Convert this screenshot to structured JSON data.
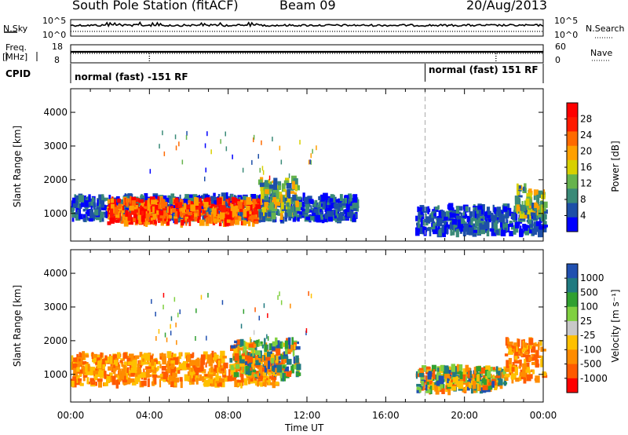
{
  "header": {
    "title": "South Pole Station (fitACF)",
    "beam": "Beam 09",
    "date": "20/Aug/2013"
  },
  "strip": {
    "nsky_label": "N.Sky",
    "nsky_top": "10^5",
    "nsky_bottom": "10^0",
    "nsearch_label": "N.Search",
    "nsearch_top": "10^5",
    "nsearch_bottom": "10^0",
    "freq_label": "Freq.",
    "freq_unit": "[MHz]",
    "freq_top": "18",
    "freq_bottom": "8",
    "nave_label": "Nave",
    "nave_top": "60",
    "nave_bottom": "0",
    "cpid_label": "CPID",
    "cpid_mode_1": "normal (fast) -151 RF",
    "cpid_mode_2": "normal (fast) 151 RF"
  },
  "colors": {
    "power_scale": [
      "#0000ff",
      "#1d4fa8",
      "#3a8a78",
      "#66b34d",
      "#d8d000",
      "#ffa000",
      "#ff6a00",
      "#ff1a00",
      "#ff0000"
    ],
    "velocity_scale": [
      "#ff0000",
      "#ff5a00",
      "#ff8c00",
      "#ffc000",
      "#c8c8c8",
      "#80d040",
      "#30a030",
      "#207a80",
      "#2050b0"
    ],
    "dashed_marker": "#aaaaaa"
  },
  "chart_data": [
    {
      "type": "heatmap",
      "quantity": "Power",
      "xlabel": "",
      "ylabel": "Slant Range [km]",
      "xlim": [
        "00:00",
        "24:00"
      ],
      "ylim": [
        180,
        4700
      ],
      "x_ticks": [
        "00:00",
        "04:00",
        "08:00",
        "12:00",
        "16:00",
        "20:00",
        "00:00"
      ],
      "y_ticks": [
        1000,
        2000,
        3000,
        4000
      ],
      "colorbar": {
        "label": "Power [dB]",
        "range": [
          0,
          32
        ],
        "ticks": [
          4,
          8,
          12,
          16,
          20,
          24,
          28
        ]
      },
      "mode_change_hour": 18,
      "regions": [
        {
          "t0": 0.0,
          "t1": 14.5,
          "r0": 800,
          "r1": 1500,
          "level": "low"
        },
        {
          "t0": 1.8,
          "t1": 9.5,
          "r0": 700,
          "r1": 1400,
          "level": "high"
        },
        {
          "t0": 9.5,
          "t1": 11.5,
          "r0": 900,
          "r1": 2000,
          "level": "medium"
        },
        {
          "t0": 17.5,
          "t1": 24.0,
          "r0": 400,
          "r1": 1200,
          "level": "low"
        },
        {
          "t0": 22.5,
          "t1": 24.0,
          "r0": 900,
          "r1": 1800,
          "level": "medium"
        }
      ]
    },
    {
      "type": "heatmap",
      "quantity": "Velocity",
      "xlabel": "Time UT",
      "ylabel": "Slant Range [km]",
      "xlim": [
        "00:00",
        "24:00"
      ],
      "ylim": [
        180,
        4700
      ],
      "x_ticks": [
        "00:00",
        "04:00",
        "08:00",
        "12:00",
        "16:00",
        "20:00",
        "00:00"
      ],
      "y_ticks": [
        1000,
        2000,
        3000,
        4000
      ],
      "colorbar": {
        "label": "Velocity [m s⁻¹]",
        "ticks": [
          "1000",
          "500",
          "100",
          "25",
          "-25",
          "-100",
          "-500",
          "-1000"
        ]
      },
      "mode_change_hour": 18,
      "regions": [
        {
          "t0": 0.0,
          "t1": 10.5,
          "r0": 700,
          "r1": 1600,
          "level": "negative"
        },
        {
          "t0": 8.0,
          "t1": 11.5,
          "r0": 900,
          "r1": 2000,
          "level": "mixed"
        },
        {
          "t0": 17.5,
          "t1": 22.0,
          "r0": 500,
          "r1": 1200,
          "level": "mixed"
        },
        {
          "t0": 22.0,
          "t1": 24.0,
          "r0": 800,
          "r1": 2000,
          "level": "negative"
        }
      ]
    }
  ]
}
